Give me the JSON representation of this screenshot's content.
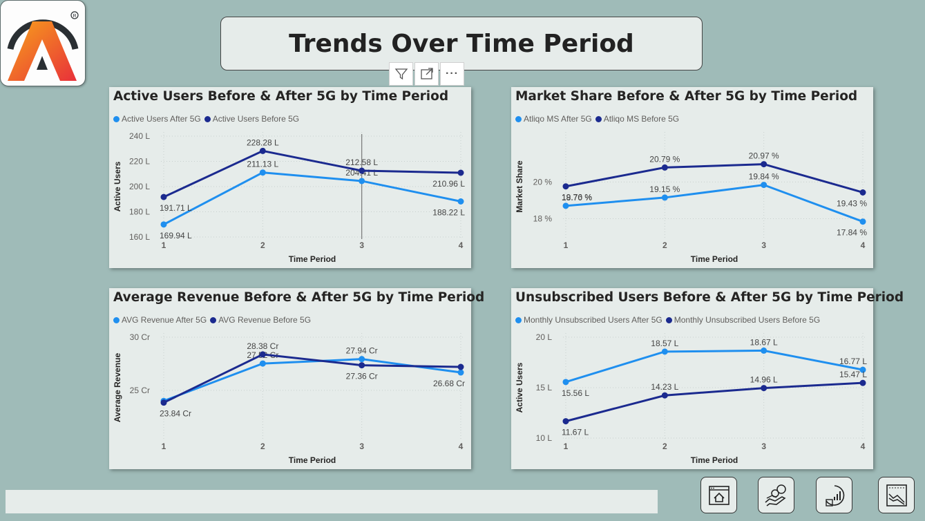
{
  "page": {
    "title": "Trends Over Time Period",
    "background": "#9fbbb8",
    "colors": {
      "after": "#1f8fef",
      "before": "#1b2a8f"
    }
  },
  "toolbar": {
    "icons": [
      "filter-icon",
      "focus-mode-icon",
      "more-options-icon"
    ],
    "more_label": "···"
  },
  "nav": {
    "icons": [
      "home-dashboard-icon",
      "revenue-hand-icon",
      "target-chart-icon",
      "trend-chart-icon"
    ]
  },
  "chart_data": [
    {
      "type": "line",
      "title": "Active Users Before & After 5G by Time Period",
      "xlabel": "Time Period",
      "ylabel": "Active Users",
      "categories": [
        "1",
        "2",
        "3",
        "4"
      ],
      "yticks": [
        "160 L",
        "180 L",
        "200 L",
        "220 L",
        "240 L"
      ],
      "ytick_values": [
        160,
        180,
        200,
        220,
        240
      ],
      "ylim": [
        160,
        240
      ],
      "hover_line_at": "3",
      "series": [
        {
          "name": "Active Users After 5G",
          "values": [
            169.94,
            211.13,
            204.41,
            188.22
          ],
          "labels": [
            "169.94 L",
            "211.13 L",
            "204.41 L",
            "188.22 L"
          ]
        },
        {
          "name": "Active Users Before 5G",
          "values": [
            191.71,
            228.28,
            212.58,
            210.96
          ],
          "labels": [
            "191.71 L",
            "228.28 L",
            "212.58 L",
            "210.96 L"
          ]
        }
      ]
    },
    {
      "type": "line",
      "title": "Market Share Before & After 5G by Time Period",
      "xlabel": "Time Period",
      "ylabel": "Market Share",
      "categories": [
        "1",
        "2",
        "3",
        "4"
      ],
      "yticks": [
        "18 %",
        "20 %"
      ],
      "ytick_values": [
        18,
        20
      ],
      "ylim": [
        17,
        22.5
      ],
      "series": [
        {
          "name": "Atliqo MS After 5G",
          "values": [
            18.7,
            19.15,
            19.84,
            17.84
          ],
          "labels": [
            "18.70 %",
            "19.15 %",
            "19.84 %",
            "17.84 %"
          ]
        },
        {
          "name": "Atliqo MS Before 5G",
          "values": [
            19.76,
            20.79,
            20.97,
            19.43
          ],
          "labels": [
            "19.76 %",
            "20.79 %",
            "20.97 %",
            "19.43 %"
          ]
        }
      ]
    },
    {
      "type": "line",
      "title": "Average Revenue Before & After 5G by Time Period",
      "xlabel": "Time Period",
      "ylabel": "Average Revenue",
      "categories": [
        "1",
        "2",
        "3",
        "4"
      ],
      "yticks": [
        "25 Cr",
        "30 Cr"
      ],
      "ytick_values": [
        25,
        30
      ],
      "ylim": [
        20.5,
        30
      ],
      "series": [
        {
          "name": "AVG Revenue After 5G",
          "values": [
            24.0,
            27.52,
            27.94,
            26.68
          ],
          "labels": [
            "",
            "27.52 Cr",
            "27.94 Cr",
            "26.68 Cr"
          ]
        },
        {
          "name": "AVG Revenue Before 5G",
          "values": [
            23.84,
            28.38,
            27.36,
            27.2
          ],
          "labels": [
            "23.84 Cr",
            "28.38 Cr",
            "27.36 Cr",
            ""
          ]
        }
      ]
    },
    {
      "type": "line",
      "title": "Unsubscribed Users Before & After 5G by Time Period",
      "xlabel": "Time Period",
      "ylabel": "Active Users",
      "categories": [
        "1",
        "2",
        "3",
        "4"
      ],
      "yticks": [
        "10 L",
        "15 L",
        "20 L"
      ],
      "ytick_values": [
        10,
        15,
        20
      ],
      "ylim": [
        10,
        20
      ],
      "series": [
        {
          "name": "Monthly Unsubscribed Users After 5G",
          "values": [
            15.56,
            18.57,
            18.67,
            16.77
          ],
          "labels": [
            "15.56 L",
            "18.57 L",
            "18.67 L",
            "16.77 L"
          ]
        },
        {
          "name": "Monthly Unsubscribed Users Before 5G",
          "values": [
            11.67,
            14.23,
            14.96,
            15.47
          ],
          "labels": [
            "11.67 L",
            "14.23 L",
            "14.96 L",
            "15.47 L"
          ]
        }
      ]
    }
  ]
}
